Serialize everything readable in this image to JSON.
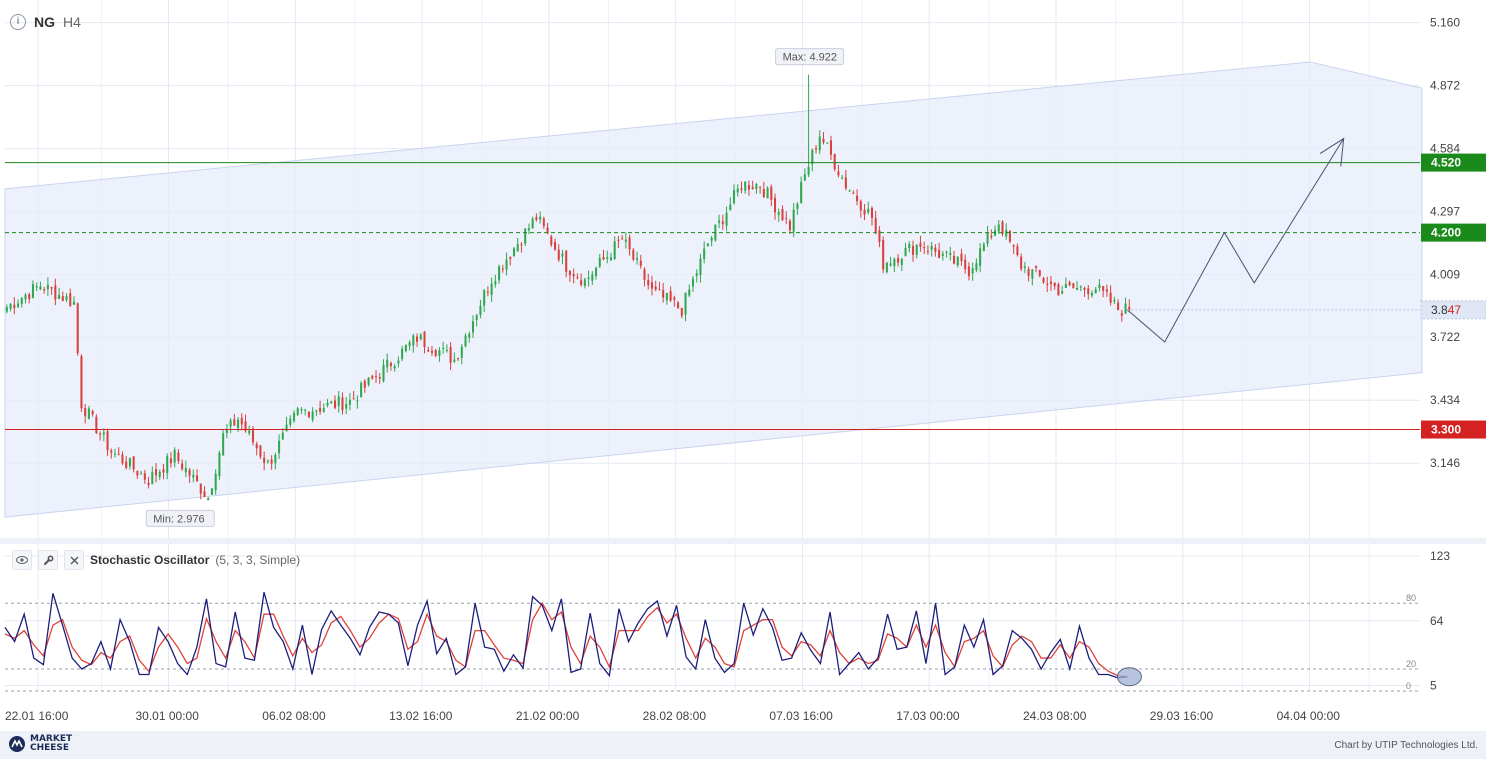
{
  "header": {
    "symbol": "NG",
    "timeframe": "H4"
  },
  "indicator": {
    "name": "Stochastic Oscillator",
    "params": "(5, 3, 3, Simple)"
  },
  "footer": {
    "logo_line1": "MARKET",
    "logo_line2": "CHEESE",
    "credit": "Chart by UTIP Technologies Ltd."
  },
  "colors": {
    "bull": "#2fa84f",
    "bear": "#d8413d",
    "resistance": "#1a8a1a",
    "support": "#d42222",
    "channel": "#e6ecfa",
    "stochK": "#1b1f7a",
    "stochD": "#e0423a",
    "grid": "#e4e8f2"
  },
  "chart_data": [
    {
      "type": "candlestick",
      "symbol": "NG",
      "timeframe": "H4",
      "y_ticks": [
        "5.160",
        "4.872",
        "4.584",
        "4.297",
        "4.009",
        "3.722",
        "3.434",
        "3.146"
      ],
      "ylim": [
        2.85,
        5.19
      ],
      "x_ticks": [
        "22.01 16:00",
        "30.01 00:00",
        "06.02 08:00",
        "13.02 16:00",
        "21.02 00:00",
        "28.02 08:00",
        "07.03 16:00",
        "17.03 00:00",
        "24.03 08:00",
        "29.03 16:00",
        "04.04 00:00"
      ],
      "x_tick_slots": [
        0,
        35,
        69,
        103,
        137,
        171,
        205,
        239,
        273,
        307,
        341
      ],
      "n_slots": 380,
      "max_label": "Max: 4.922",
      "min_label": "Min: 2.976",
      "max": {
        "value": 4.922,
        "slot": 215
      },
      "min": {
        "value": 2.976,
        "slot": 54
      },
      "levels": [
        {
          "value": 4.52,
          "label": "4.520",
          "style": "solid",
          "color": "#1a8a1a"
        },
        {
          "value": 4.2,
          "label": "4.200",
          "style": "dashed",
          "color": "#1a8a1a"
        },
        {
          "value": 3.3,
          "label": "3.300",
          "style": "solid",
          "color": "#d42222"
        }
      ],
      "current_price": "3.847",
      "channel": {
        "upper": [
          [
            0,
            4.4
          ],
          [
            350,
            4.98
          ],
          [
            380,
            4.86
          ]
        ],
        "lower": [
          [
            0,
            2.9
          ],
          [
            380,
            3.56
          ]
        ]
      },
      "forecast_path": [
        [
          301,
          3.847
        ],
        [
          311,
          3.7
        ],
        [
          327,
          4.2
        ],
        [
          335,
          3.97
        ],
        [
          359,
          4.63
        ]
      ],
      "arrow_label": "",
      "candles_anchor": [
        [
          0,
          3.86
        ],
        [
          9,
          3.96
        ],
        [
          18,
          3.88
        ],
        [
          20,
          3.42
        ],
        [
          28,
          3.2
        ],
        [
          38,
          3.07
        ],
        [
          45,
          3.18
        ],
        [
          54,
          2.99
        ],
        [
          58,
          3.27
        ],
        [
          62,
          3.35
        ],
        [
          70,
          3.14
        ],
        [
          78,
          3.38
        ],
        [
          92,
          3.43
        ],
        [
          110,
          3.72
        ],
        [
          120,
          3.62
        ],
        [
          130,
          3.99
        ],
        [
          142,
          4.27
        ],
        [
          150,
          4.05
        ],
        [
          155,
          3.98
        ],
        [
          165,
          4.17
        ],
        [
          173,
          3.93
        ],
        [
          181,
          3.85
        ],
        [
          188,
          4.15
        ],
        [
          197,
          4.42
        ],
        [
          202,
          4.42
        ],
        [
          210,
          4.23
        ],
        [
          214,
          4.46
        ],
        [
          218,
          4.65
        ],
        [
          225,
          4.42
        ],
        [
          232,
          4.27
        ],
        [
          235,
          4.06
        ],
        [
          245,
          4.15
        ],
        [
          258,
          4.03
        ],
        [
          266,
          4.25
        ],
        [
          272,
          4.05
        ],
        [
          282,
          3.94
        ],
        [
          292,
          3.95
        ],
        [
          298,
          3.85
        ],
        [
          301,
          3.847
        ]
      ]
    },
    {
      "type": "line",
      "name": "Stochastic Oscillator",
      "y_ticks": [
        "123",
        "64",
        "5"
      ],
      "ylim": [
        0,
        123
      ],
      "levels": [
        {
          "value": 80,
          "label": "80"
        },
        {
          "value": 20,
          "label": "20"
        },
        {
          "value": 0,
          "label": "0"
        }
      ],
      "series": [
        {
          "key": "k",
          "color": "#1b1f7a",
          "values": [
            58,
            45,
            70,
            30,
            24,
            89,
            60,
            30,
            20,
            25,
            45,
            20,
            65,
            45,
            15,
            15,
            58,
            45,
            25,
            15,
            40,
            84,
            25,
            22,
            72,
            30,
            28,
            90,
            58,
            45,
            20,
            60,
            15,
            56,
            73,
            60,
            48,
            33,
            58,
            72,
            70,
            62,
            23,
            60,
            82,
            34,
            48,
            15,
            22,
            80,
            40,
            38,
            18,
            33,
            21,
            86,
            78,
            55,
            84,
            17,
            20,
            71,
            25,
            14,
            75,
            45,
            62,
            75,
            82,
            50,
            78,
            31,
            20,
            65,
            30,
            17,
            25,
            80,
            51,
            75,
            58,
            28,
            30,
            53,
            37,
            25,
            72,
            15,
            25,
            35,
            20,
            30,
            70,
            38,
            40,
            73,
            25,
            80,
            15,
            22,
            60,
            40,
            65,
            15,
            23,
            55,
            48,
            38,
            20,
            35,
            47,
            20,
            59,
            30,
            15,
            15,
            12,
            13
          ]
        },
        {
          "key": "d",
          "color": "#e0423a",
          "values": [
            52,
            48,
            55,
            42,
            32,
            60,
            65,
            40,
            28,
            24,
            35,
            30,
            45,
            50,
            28,
            18,
            40,
            52,
            40,
            25,
            30,
            66,
            45,
            30,
            55,
            45,
            30,
            70,
            70,
            50,
            32,
            48,
            35,
            42,
            62,
            68,
            55,
            40,
            48,
            62,
            70,
            66,
            38,
            45,
            70,
            50,
            45,
            28,
            22,
            55,
            55,
            42,
            30,
            28,
            25,
            65,
            80,
            65,
            72,
            40,
            25,
            50,
            40,
            22,
            55,
            55,
            55,
            68,
            76,
            62,
            70,
            48,
            30,
            48,
            40,
            25,
            22,
            55,
            60,
            65,
            65,
            40,
            32,
            45,
            42,
            32,
            55,
            35,
            25,
            30,
            25,
            28,
            52,
            48,
            40,
            60,
            40,
            60,
            35,
            22,
            45,
            48,
            55,
            32,
            22,
            42,
            50,
            45,
            30,
            30,
            42,
            30,
            45,
            40,
            25,
            18,
            14,
            13
          ]
        }
      ],
      "series_slots": [
        0,
        301
      ],
      "marker": {
        "slot": 301,
        "value": 13
      }
    }
  ]
}
